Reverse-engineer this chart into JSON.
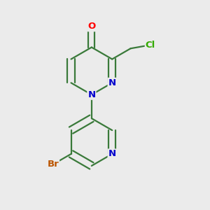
{
  "background_color": "#ebebeb",
  "bond_color": "#3a7a3a",
  "atom_colors": {
    "O": "#ff0000",
    "N": "#0000cc",
    "Cl": "#33aa00",
    "Br": "#bb5500",
    "C": "#000000"
  },
  "figsize": [
    3.0,
    3.0
  ],
  "dpi": 100,
  "bond_lw": 1.6,
  "font_size": 9.5
}
